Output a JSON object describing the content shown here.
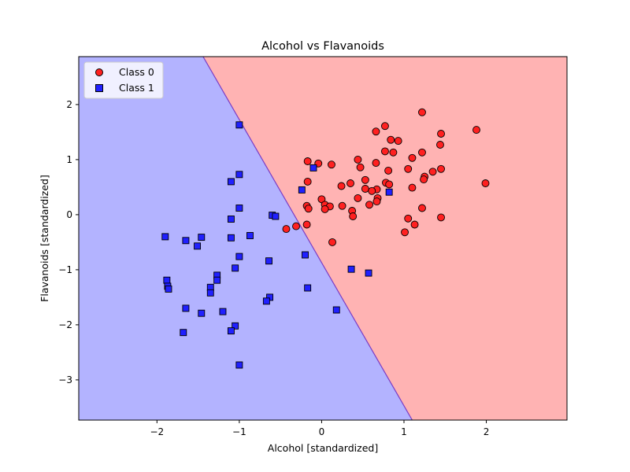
{
  "chart_data": {
    "type": "scatter",
    "title": "Alcohol vs Flavanoids",
    "xlabel": "Alcohol [standardized]",
    "ylabel": "Flavanoids [standardized]",
    "xlim": [
      -2.95,
      2.98
    ],
    "ylim": [
      -3.73,
      2.87
    ],
    "xticks": [
      -2,
      -1,
      0,
      1,
      2
    ],
    "yticks": [
      2,
      1,
      0,
      -1,
      -2,
      -3
    ],
    "xtick_labels": [
      "−2",
      "−1",
      "0",
      "1",
      "2"
    ],
    "ytick_labels": [
      "2",
      "1",
      "0",
      "−1",
      "−2",
      "−3"
    ],
    "grid": false,
    "legend_position": "top-left",
    "decision_boundary": {
      "x_at_top": -1.44,
      "x_at_bottom": 1.1,
      "left_region_color": "#b3b3ff",
      "right_region_color": "#ffb3b3",
      "boundary_color": "#7b3cc4"
    },
    "series": [
      {
        "name": "Class 0",
        "marker": "circle",
        "color": "#ff2020",
        "points": [
          [
            1.22,
            1.86
          ],
          [
            0.66,
            1.51
          ],
          [
            0.77,
            1.61
          ],
          [
            1.88,
            1.54
          ],
          [
            1.45,
            1.47
          ],
          [
            0.84,
            1.36
          ],
          [
            0.93,
            1.34
          ],
          [
            1.44,
            1.27
          ],
          [
            0.77,
            1.15
          ],
          [
            0.87,
            1.13
          ],
          [
            1.22,
            1.13
          ],
          [
            0.44,
            1.0
          ],
          [
            1.1,
            1.03
          ],
          [
            -0.17,
            0.97
          ],
          [
            -0.04,
            0.93
          ],
          [
            0.12,
            0.91
          ],
          [
            0.66,
            0.94
          ],
          [
            0.47,
            0.86
          ],
          [
            1.45,
            0.83
          ],
          [
            1.05,
            0.83
          ],
          [
            0.81,
            0.8
          ],
          [
            1.35,
            0.78
          ],
          [
            1.25,
            0.69
          ],
          [
            1.24,
            0.64
          ],
          [
            1.99,
            0.57
          ],
          [
            0.53,
            0.63
          ],
          [
            -0.17,
            0.6
          ],
          [
            0.35,
            0.57
          ],
          [
            0.78,
            0.58
          ],
          [
            0.82,
            0.55
          ],
          [
            0.24,
            0.52
          ],
          [
            1.1,
            0.49
          ],
          [
            0.53,
            0.47
          ],
          [
            0.67,
            0.46
          ],
          [
            0.61,
            0.43
          ],
          [
            0.44,
            0.3
          ],
          [
            0.0,
            0.28
          ],
          [
            0.68,
            0.3
          ],
          [
            0.67,
            0.24
          ],
          [
            -0.18,
            0.16
          ],
          [
            0.04,
            0.18
          ],
          [
            0.58,
            0.18
          ],
          [
            0.25,
            0.16
          ],
          [
            0.1,
            0.15
          ],
          [
            -0.16,
            0.11
          ],
          [
            0.04,
            0.1
          ],
          [
            1.22,
            0.12
          ],
          [
            0.37,
            0.07
          ],
          [
            0.38,
            -0.03
          ],
          [
            1.45,
            -0.05
          ],
          [
            1.05,
            -0.07
          ],
          [
            -0.18,
            -0.18
          ],
          [
            1.13,
            -0.18
          ],
          [
            -0.31,
            -0.21
          ],
          [
            -0.43,
            -0.26
          ],
          [
            1.01,
            -0.32
          ],
          [
            0.13,
            -0.5
          ]
        ]
      },
      {
        "name": "Class 1",
        "marker": "square",
        "color": "#2020ff",
        "points": [
          [
            -1.0,
            1.63
          ],
          [
            -0.1,
            0.85
          ],
          [
            -1.0,
            0.73
          ],
          [
            -1.1,
            0.6
          ],
          [
            -0.24,
            0.45
          ],
          [
            0.82,
            0.41
          ],
          [
            -1.0,
            0.12
          ],
          [
            -0.6,
            -0.01
          ],
          [
            -0.56,
            -0.03
          ],
          [
            -1.1,
            -0.08
          ],
          [
            -1.9,
            -0.4
          ],
          [
            -1.46,
            -0.41
          ],
          [
            -1.1,
            -0.42
          ],
          [
            -0.87,
            -0.38
          ],
          [
            -1.65,
            -0.47
          ],
          [
            -1.51,
            -0.57
          ],
          [
            -1.0,
            -0.76
          ],
          [
            -0.2,
            -0.73
          ],
          [
            -0.64,
            -0.84
          ],
          [
            -1.05,
            -0.97
          ],
          [
            0.36,
            -0.99
          ],
          [
            0.57,
            -1.06
          ],
          [
            -1.27,
            -1.1
          ],
          [
            -1.27,
            -1.19
          ],
          [
            -1.88,
            -1.19
          ],
          [
            -1.87,
            -1.3
          ],
          [
            -1.86,
            -1.35
          ],
          [
            -1.35,
            -1.32
          ],
          [
            -0.17,
            -1.33
          ],
          [
            -1.35,
            -1.42
          ],
          [
            -0.63,
            -1.5
          ],
          [
            -0.67,
            -1.57
          ],
          [
            -1.65,
            -1.7
          ],
          [
            -1.2,
            -1.76
          ],
          [
            0.18,
            -1.73
          ],
          [
            -1.46,
            -1.79
          ],
          [
            -1.05,
            -2.02
          ],
          [
            -1.1,
            -2.11
          ],
          [
            -1.68,
            -2.14
          ],
          [
            -1.0,
            -2.73
          ]
        ]
      }
    ]
  }
}
